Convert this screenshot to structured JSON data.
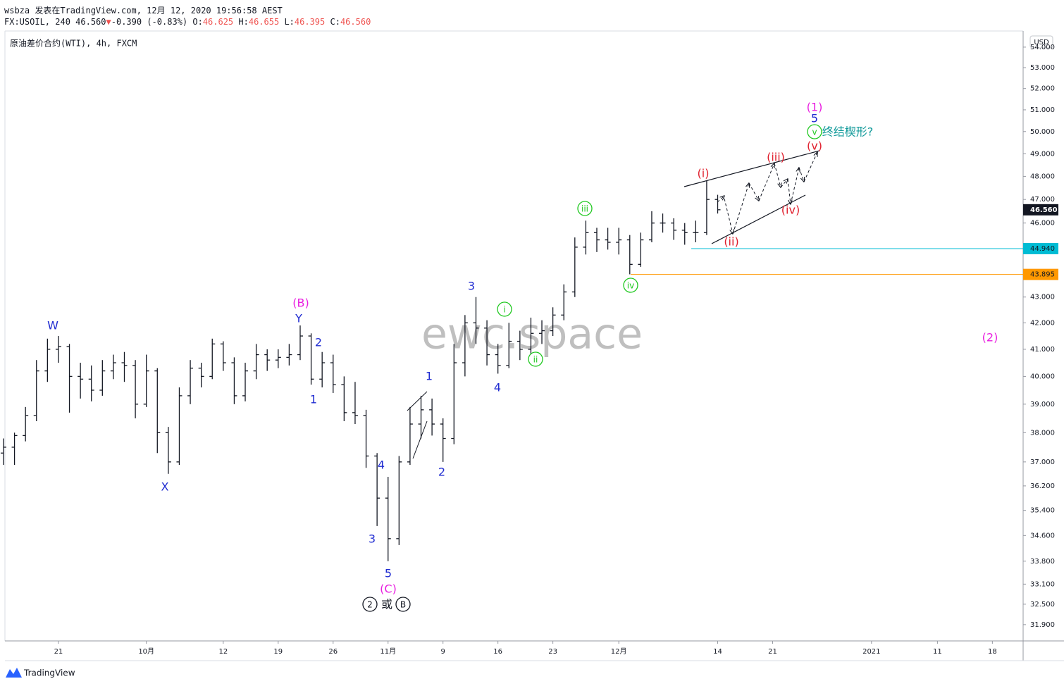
{
  "header": {
    "author_line": "wsbza 发表在TradingView.com, 12月 12, 2020 19:56:58 AEST",
    "symbol": "FX:USOIL, 240",
    "last": "46.560",
    "arrow": "▼",
    "change": "-0.390 (-0.83%)",
    "ohlc": [
      {
        "key": "O:",
        "value": "46.625"
      },
      {
        "key": "H:",
        "value": "46.655"
      },
      {
        "key": "L:",
        "value": "46.395"
      },
      {
        "key": "C:",
        "value": "46.560"
      }
    ]
  },
  "chart_data": {
    "type": "ohlc",
    "title": "原油差价合约(WTI), 4h, FXCM",
    "currency": "USD",
    "watermark": "ewc.space",
    "brand": "TradingView",
    "log_scale": true,
    "color": "#131722",
    "x": [
      -5,
      -4,
      -3,
      -2,
      -1,
      0,
      1,
      2,
      3,
      4,
      5,
      6,
      7,
      8,
      9,
      10,
      11,
      12,
      13,
      14,
      15,
      16,
      17,
      18,
      19,
      20,
      21,
      22,
      23,
      24,
      25,
      26,
      27,
      28,
      29,
      30,
      31,
      32,
      33,
      34,
      35,
      36,
      37,
      38,
      39,
      40,
      41,
      42,
      43,
      44,
      45,
      46,
      47,
      48,
      49,
      50,
      51,
      52,
      53,
      54,
      55,
      56,
      57,
      58,
      59,
      60
    ],
    "open": [
      37.3,
      37.5,
      37.9,
      38.6,
      40.2,
      41.0,
      41.1,
      40.0,
      39.9,
      39.5,
      40.2,
      40.5,
      40.4,
      39.0,
      40.2,
      38.0,
      37.0,
      39.3,
      40.3,
      40.0,
      41.2,
      40.5,
      39.3,
      40.2,
      40.8,
      40.6,
      40.7,
      40.8,
      41.5,
      39.9,
      40.5,
      39.7,
      38.7,
      38.6,
      37.2,
      35.8,
      34.5,
      37.0,
      38.3,
      38.8,
      38.3,
      37.8,
      40.5,
      42.0,
      41.8,
      40.8,
      40.4,
      41.3,
      41.0,
      41.6,
      41.7,
      42.3,
      43.2,
      45.0,
      45.6,
      45.3,
      45.2,
      45.3,
      44.3,
      45.3,
      46.0,
      46.0,
      45.7,
      45.6,
      45.6,
      47.0
    ],
    "high": [
      37.8,
      38.0,
      38.9,
      40.6,
      41.4,
      41.5,
      41.2,
      40.5,
      40.4,
      40.6,
      40.8,
      40.9,
      40.6,
      40.8,
      40.3,
      38.2,
      39.6,
      40.6,
      40.5,
      41.4,
      41.3,
      40.7,
      40.5,
      41.2,
      41.0,
      41.0,
      41.2,
      41.9,
      41.6,
      40.9,
      40.8,
      40.0,
      39.8,
      38.8,
      37.3,
      36.5,
      37.2,
      38.9,
      39.3,
      39.2,
      38.5,
      41.2,
      42.3,
      43.0,
      42.1,
      41.2,
      42.0,
      41.7,
      42.2,
      42.1,
      42.6,
      43.5,
      45.4,
      46.1,
      45.8,
      45.8,
      45.8,
      45.5,
      45.6,
      46.5,
      46.4,
      46.2,
      46.0,
      46.1,
      47.8,
      47.2
    ],
    "low": [
      36.9,
      36.9,
      37.7,
      38.4,
      39.8,
      40.5,
      38.7,
      39.2,
      39.1,
      39.3,
      39.9,
      39.8,
      38.5,
      38.9,
      37.3,
      36.6,
      36.9,
      39.0,
      39.6,
      39.9,
      40.2,
      39.0,
      39.1,
      39.9,
      40.2,
      40.3,
      40.4,
      40.6,
      39.7,
      39.6,
      39.4,
      38.4,
      38.3,
      36.8,
      34.9,
      33.8,
      34.3,
      36.9,
      37.8,
      37.9,
      37.0,
      37.6,
      40.0,
      41.2,
      40.4,
      40.1,
      40.3,
      40.6,
      40.8,
      41.2,
      41.5,
      42.1,
      43.0,
      44.7,
      44.8,
      44.9,
      44.7,
      43.9,
      44.2,
      45.2,
      45.6,
      45.3,
      45.1,
      45.2,
      45.5,
      46.4
    ],
    "close": [
      37.5,
      37.9,
      38.6,
      40.2,
      41.0,
      41.1,
      40.0,
      39.9,
      39.5,
      40.2,
      40.5,
      40.4,
      39.0,
      40.2,
      38.0,
      37.0,
      39.3,
      40.3,
      40.0,
      41.2,
      40.5,
      39.3,
      40.2,
      40.8,
      40.6,
      40.7,
      40.8,
      41.5,
      39.9,
      40.5,
      39.7,
      38.7,
      38.6,
      37.2,
      35.8,
      34.5,
      37.0,
      38.3,
      38.8,
      38.3,
      37.8,
      40.5,
      42.0,
      41.8,
      40.8,
      40.4,
      41.3,
      41.0,
      41.6,
      41.7,
      42.3,
      43.2,
      45.0,
      45.6,
      45.3,
      45.2,
      45.3,
      44.3,
      45.3,
      46.0,
      46.0,
      45.7,
      45.6,
      45.6,
      47.0,
      46.56
    ],
    "xlim": [
      -4.87,
      87.8
    ],
    "xticks": [
      {
        "value": 0,
        "label": "21"
      },
      {
        "value": 8,
        "label": "10月"
      },
      {
        "value": 15,
        "label": "12"
      },
      {
        "value": 20,
        "label": "19"
      },
      {
        "value": 25,
        "label": "26"
      },
      {
        "value": 30,
        "label": "11月"
      },
      {
        "value": 35,
        "label": "9"
      },
      {
        "value": 40,
        "label": "16"
      },
      {
        "value": 45,
        "label": "23"
      },
      {
        "value": 51,
        "label": "12月"
      },
      {
        "value": 60,
        "label": "14"
      },
      {
        "value": 65,
        "label": "21"
      },
      {
        "value": 74,
        "label": "2021"
      },
      {
        "value": 80,
        "label": "11"
      },
      {
        "value": 85,
        "label": "18"
      }
    ],
    "ylim": [
      31.43,
      54.8
    ],
    "yticks": [
      {
        "value": 54,
        "label": "54.000"
      },
      {
        "value": 53,
        "label": "53.000"
      },
      {
        "value": 52,
        "label": "52.000"
      },
      {
        "value": 51,
        "label": "51.000"
      },
      {
        "value": 50,
        "label": "50.000"
      },
      {
        "value": 49,
        "label": "49.000"
      },
      {
        "value": 48,
        "label": "48.000"
      },
      {
        "value": 47,
        "label": "47.000"
      },
      {
        "value": 46,
        "label": "46.000"
      },
      {
        "value": 43,
        "label": "43.000"
      },
      {
        "value": 42,
        "label": "42.000"
      },
      {
        "value": 41,
        "label": "41.000"
      },
      {
        "value": 40,
        "label": "40.000"
      },
      {
        "value": 39,
        "label": "39.000"
      },
      {
        "value": 38,
        "label": "38.000"
      },
      {
        "value": 37,
        "label": "37.000"
      },
      {
        "value": 36.2,
        "label": "36.200"
      },
      {
        "value": 35.4,
        "label": "35.400"
      },
      {
        "value": 34.6,
        "label": "34.600"
      },
      {
        "value": 33.8,
        "label": "33.800"
      },
      {
        "value": 33.1,
        "label": "33.100"
      },
      {
        "value": 32.5,
        "label": "32.500"
      },
      {
        "value": 31.9,
        "label": "31.900"
      }
    ],
    "last_price": {
      "value": 46.56,
      "label": "46.560",
      "color": "#131722"
    },
    "levels": [
      {
        "value": 44.94,
        "label": "44.940",
        "color": "#00bcd4"
      },
      {
        "value": 43.895,
        "label": "43.895",
        "color": "#ff9800"
      }
    ],
    "annotations": [
      {
        "text": "W",
        "color": "#1f2bd1"
      },
      {
        "text": "X",
        "color": "#1f2bd1"
      },
      {
        "text": "(B)",
        "color": "#e91ee0"
      },
      {
        "text": "Y",
        "color": "#1f2bd1"
      },
      {
        "text": "2",
        "color": "#1f2bd1"
      },
      {
        "text": "1",
        "color": "#1f2bd1"
      },
      {
        "text": "3",
        "color": "#1f2bd1"
      },
      {
        "text": "1",
        "color": "#1f2bd1"
      },
      {
        "text": "4",
        "color": "#1f2bd1"
      },
      {
        "text": "3",
        "color": "#1f2bd1"
      },
      {
        "text": "5",
        "color": "#1f2bd1"
      },
      {
        "text": "(C)",
        "color": "#e91ee0"
      },
      {
        "text": "2",
        "color": "#1f2bd1"
      },
      {
        "text": "4",
        "color": "#1f2bd1"
      },
      {
        "text": "i",
        "color": "#1ec81e",
        "circled": true
      },
      {
        "text": "ii",
        "color": "#1ec81e",
        "circled": true
      },
      {
        "text": "iii",
        "color": "#1ec81e",
        "circled": true
      },
      {
        "text": "iv",
        "color": "#1ec81e",
        "circled": true
      },
      {
        "text": "(i)",
        "color": "#e0202e"
      },
      {
        "text": "(ii)",
        "color": "#e0202e"
      },
      {
        "text": "(iii)",
        "color": "#e0202e"
      },
      {
        "text": "(iv)",
        "color": "#e0202e"
      },
      {
        "text": "(v)",
        "color": "#e0202e"
      },
      {
        "text": "v",
        "color": "#1ec81e",
        "circled": true
      },
      {
        "text": "终结楔形?",
        "color": "#129a9a"
      },
      {
        "text": "5",
        "color": "#1f2bd1"
      },
      {
        "text": "(1)",
        "color": "#e91ee0"
      },
      {
        "text": "(2)",
        "color": "#e91ee0"
      },
      {
        "text": "2",
        "color": "#131722",
        "circled": true
      },
      {
        "text": "或",
        "color": "#131722"
      },
      {
        "text": "B",
        "color": "#131722",
        "circled": true
      }
    ]
  }
}
